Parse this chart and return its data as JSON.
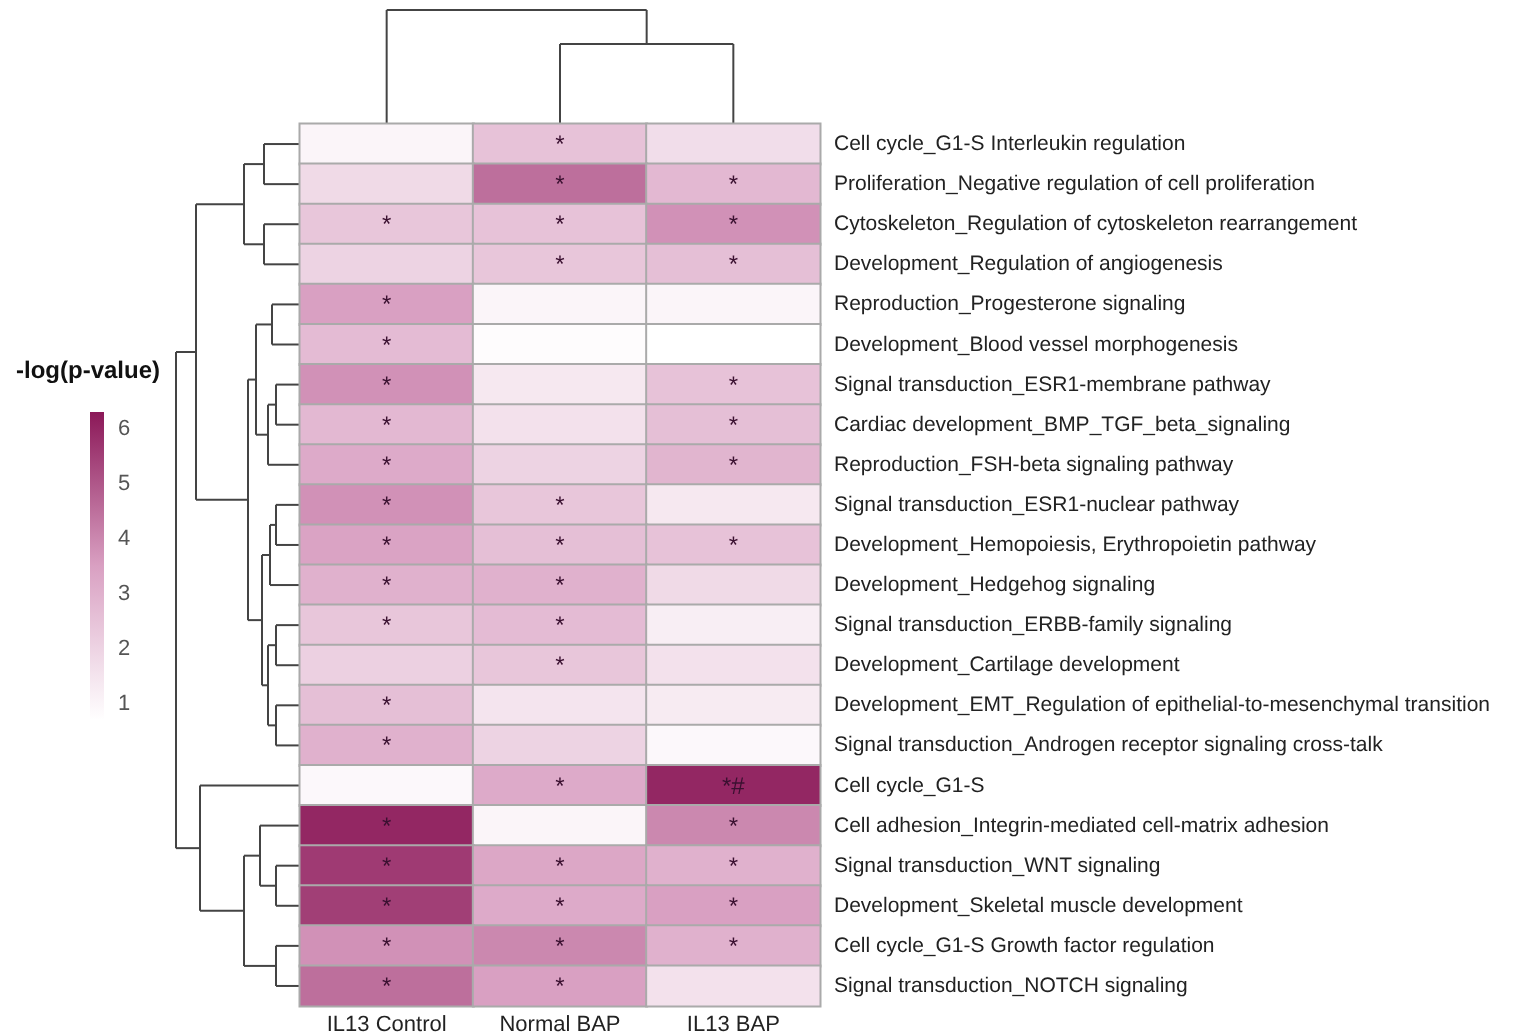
{
  "chart_data": {
    "type": "heatmap",
    "clabel": "-log(p-value)",
    "categories": [
      "IL13 Control",
      "Normal BAP",
      "IL13 BAP"
    ],
    "y_categories": [
      "Cell cycle_G1-S Interleukin regulation",
      "Proliferation_Negative regulation of cell proliferation",
      "Cytoskeleton_Regulation of cytoskeleton rearrangement",
      "Development_Regulation of angiogenesis",
      "Reproduction_Progesterone signaling",
      "Development_Blood vessel morphogenesis",
      "Signal transduction_ESR1-membrane pathway",
      "Cardiac development_BMP_TGF_beta_signaling",
      "Reproduction_FSH-beta signaling pathway",
      "Signal transduction_ESR1-nuclear pathway",
      "Development_Hemopoiesis, Erythropoietin pathway",
      "Development_Hedgehog signaling",
      "Signal transduction_ERBB-family signaling",
      "Development_Cartilage development",
      "Development_EMT_Regulation of epithelial-to-mesenchymal transition",
      "Signal transduction_Androgen receptor signaling cross-talk",
      "Cell cycle_G1-S",
      "Cell adhesion_Integrin-mediated cell-matrix adhesion",
      "Signal transduction_WNT signaling",
      "Development_Skeletal muscle development",
      "Cell cycle_G1-S Growth factor regulation",
      "Signal transduction_NOTCH signaling"
    ],
    "cells": [
      [
        1.0,
        2.5,
        1.7
      ],
      [
        1.8,
        4.5,
        2.8
      ],
      [
        2.4,
        2.5,
        3.8
      ],
      [
        2.0,
        2.4,
        2.6
      ],
      [
        3.5,
        1.0,
        1.0
      ],
      [
        2.7,
        0.8,
        0.7
      ],
      [
        3.8,
        1.4,
        2.5
      ],
      [
        2.8,
        1.6,
        2.6
      ],
      [
        3.2,
        2.0,
        2.9
      ],
      [
        3.8,
        2.4,
        1.4
      ],
      [
        3.4,
        2.6,
        2.5
      ],
      [
        3.0,
        3.0,
        1.8
      ],
      [
        2.4,
        2.7,
        1.2
      ],
      [
        2.1,
        2.4,
        1.6
      ],
      [
        2.6,
        1.5,
        1.3
      ],
      [
        3.0,
        2.0,
        0.9
      ],
      [
        0.9,
        3.2,
        6.0
      ],
      [
        6.0,
        1.0,
        4.0
      ],
      [
        5.6,
        3.3,
        3.0
      ],
      [
        5.5,
        3.2,
        3.5
      ],
      [
        3.8,
        4.0,
        3.0
      ],
      [
        4.5,
        3.5,
        1.6
      ]
    ],
    "cell_labels": [
      [
        null,
        "*",
        null
      ],
      [
        null,
        "*",
        "*"
      ],
      [
        "*",
        "*",
        "*"
      ],
      [
        null,
        "*",
        "*"
      ],
      [
        "*",
        null,
        null
      ],
      [
        "*",
        null,
        null
      ],
      [
        "*",
        null,
        "*"
      ],
      [
        "*",
        null,
        "*"
      ],
      [
        "*",
        null,
        "*"
      ],
      [
        "*",
        "*",
        null
      ],
      [
        "*",
        "*",
        "*"
      ],
      [
        "*",
        "*",
        null
      ],
      [
        "*",
        "*",
        null
      ],
      [
        null,
        "*",
        null
      ],
      [
        "*",
        null,
        null
      ],
      [
        "*",
        null,
        null
      ],
      [
        null,
        "*",
        "*#"
      ],
      [
        "*",
        null,
        "*"
      ],
      [
        "*",
        "*",
        "*"
      ],
      [
        "*",
        "*",
        "*"
      ],
      [
        "*",
        "*",
        "*"
      ],
      [
        "*",
        "*",
        null
      ]
    ],
    "clim": [
      0.7,
      6.3
    ],
    "cticks": [
      1,
      2,
      3,
      4,
      5,
      6
    ]
  }
}
